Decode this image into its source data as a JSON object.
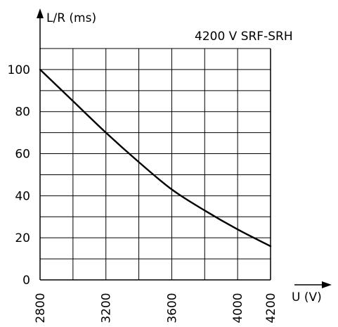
{
  "chart_data": {
    "type": "line",
    "title": "4200 V SRF-SRH",
    "ylabel": "L/R (ms)",
    "xlabel": "U (V)",
    "x_ticks": [
      2800,
      3200,
      3600,
      4000,
      4200
    ],
    "y_ticks": [
      0,
      20,
      40,
      60,
      80,
      100
    ],
    "xlim": [
      2800,
      4200
    ],
    "ylim": [
      0,
      110
    ],
    "grid": true,
    "series": [
      {
        "x": [
          2800,
          3000,
          3200,
          3400,
          3600,
          3800,
          4000,
          4200
        ],
        "values": [
          100,
          85,
          70,
          56,
          43,
          33,
          24,
          16
        ]
      }
    ]
  }
}
